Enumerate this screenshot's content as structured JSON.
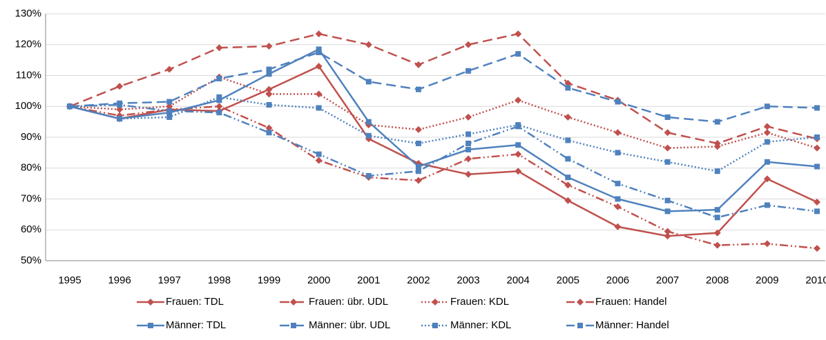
{
  "chart_data": {
    "type": "line",
    "categories": [
      1995,
      1996,
      1997,
      1998,
      1999,
      2000,
      2001,
      2002,
      2003,
      2004,
      2005,
      2006,
      2007,
      2008,
      2009,
      2010
    ],
    "ylim": [
      50,
      130
    ],
    "yticks": [
      {
        "value": 50,
        "label": "50%"
      },
      {
        "value": 60,
        "label": "60%"
      },
      {
        "value": 70,
        "label": "70%"
      },
      {
        "value": 80,
        "label": "80%"
      },
      {
        "value": 90,
        "label": "90%"
      },
      {
        "value": 100,
        "label": "100%"
      },
      {
        "value": 110,
        "label": "110%"
      },
      {
        "value": 120,
        "label": "120%"
      },
      {
        "value": 130,
        "label": "130%"
      }
    ],
    "grid": true,
    "legend": "bottom",
    "series": [
      {
        "name": "Frauen: TDL",
        "color": "#c0504d",
        "dash": "solid",
        "marker": "diamond",
        "values": [
          100,
          96,
          99,
          98.5,
          105.5,
          113,
          89.5,
          81.5,
          78,
          79,
          69.5,
          61,
          58,
          59,
          76.5,
          69
        ]
      },
      {
        "name": "Frauen: übr. UDL",
        "color": "#c0504d",
        "dash": "dashed",
        "marker": "diamond",
        "values": [
          100,
          106.5,
          112,
          119,
          119.5,
          123.5,
          120,
          113.5,
          120,
          123.5,
          107.5,
          102,
          91.5,
          88,
          93.5,
          89.5
        ]
      },
      {
        "name": "Frauen: KDL",
        "color": "#c0504d",
        "dash": "dotted",
        "marker": "diamond",
        "values": [
          100,
          99,
          100,
          109.5,
          104,
          104,
          94,
          92.5,
          96.5,
          102,
          96.5,
          91.5,
          86.5,
          87,
          91.5,
          86.5
        ]
      },
      {
        "name": "Frauen: Handel",
        "color": "#c0504d",
        "dash": "dashdotdot",
        "marker": "diamond",
        "values": [
          100,
          97,
          99,
          100,
          93,
          82.5,
          77,
          76,
          83,
          84.5,
          74.5,
          67.5,
          59.5,
          55,
          55.5,
          54
        ]
      },
      {
        "name": "Männer: TDL",
        "color": "#4f81bd",
        "dash": "solid",
        "marker": "square",
        "values": [
          100,
          96,
          98,
          102,
          110.5,
          118.5,
          95,
          80.5,
          86,
          87.5,
          77,
          70,
          66,
          66.5,
          82,
          80.5
        ]
      },
      {
        "name": "Männer: übr. UDL",
        "color": "#4f81bd",
        "dash": "dashed",
        "marker": "square",
        "values": [
          100,
          101,
          101.5,
          109,
          112,
          117.5,
          108,
          105.5,
          111.5,
          117,
          106,
          101.5,
          96.5,
          95,
          100,
          99.5
        ]
      },
      {
        "name": "Männer: KDL",
        "color": "#4f81bd",
        "dash": "dotted",
        "marker": "square",
        "values": [
          100,
          96,
          96.5,
          103,
          100.5,
          99.5,
          90.5,
          88,
          91,
          94,
          89,
          85,
          82,
          79,
          88.5,
          90
        ]
      },
      {
        "name": "Männer: Handel",
        "color": "#4f81bd",
        "dash": "dashdotdot",
        "marker": "square",
        "values": [
          100,
          100.5,
          98.5,
          98,
          91.5,
          84.5,
          77.5,
          79,
          88,
          93.5,
          83,
          75,
          69.5,
          64,
          68,
          66
        ]
      }
    ]
  }
}
